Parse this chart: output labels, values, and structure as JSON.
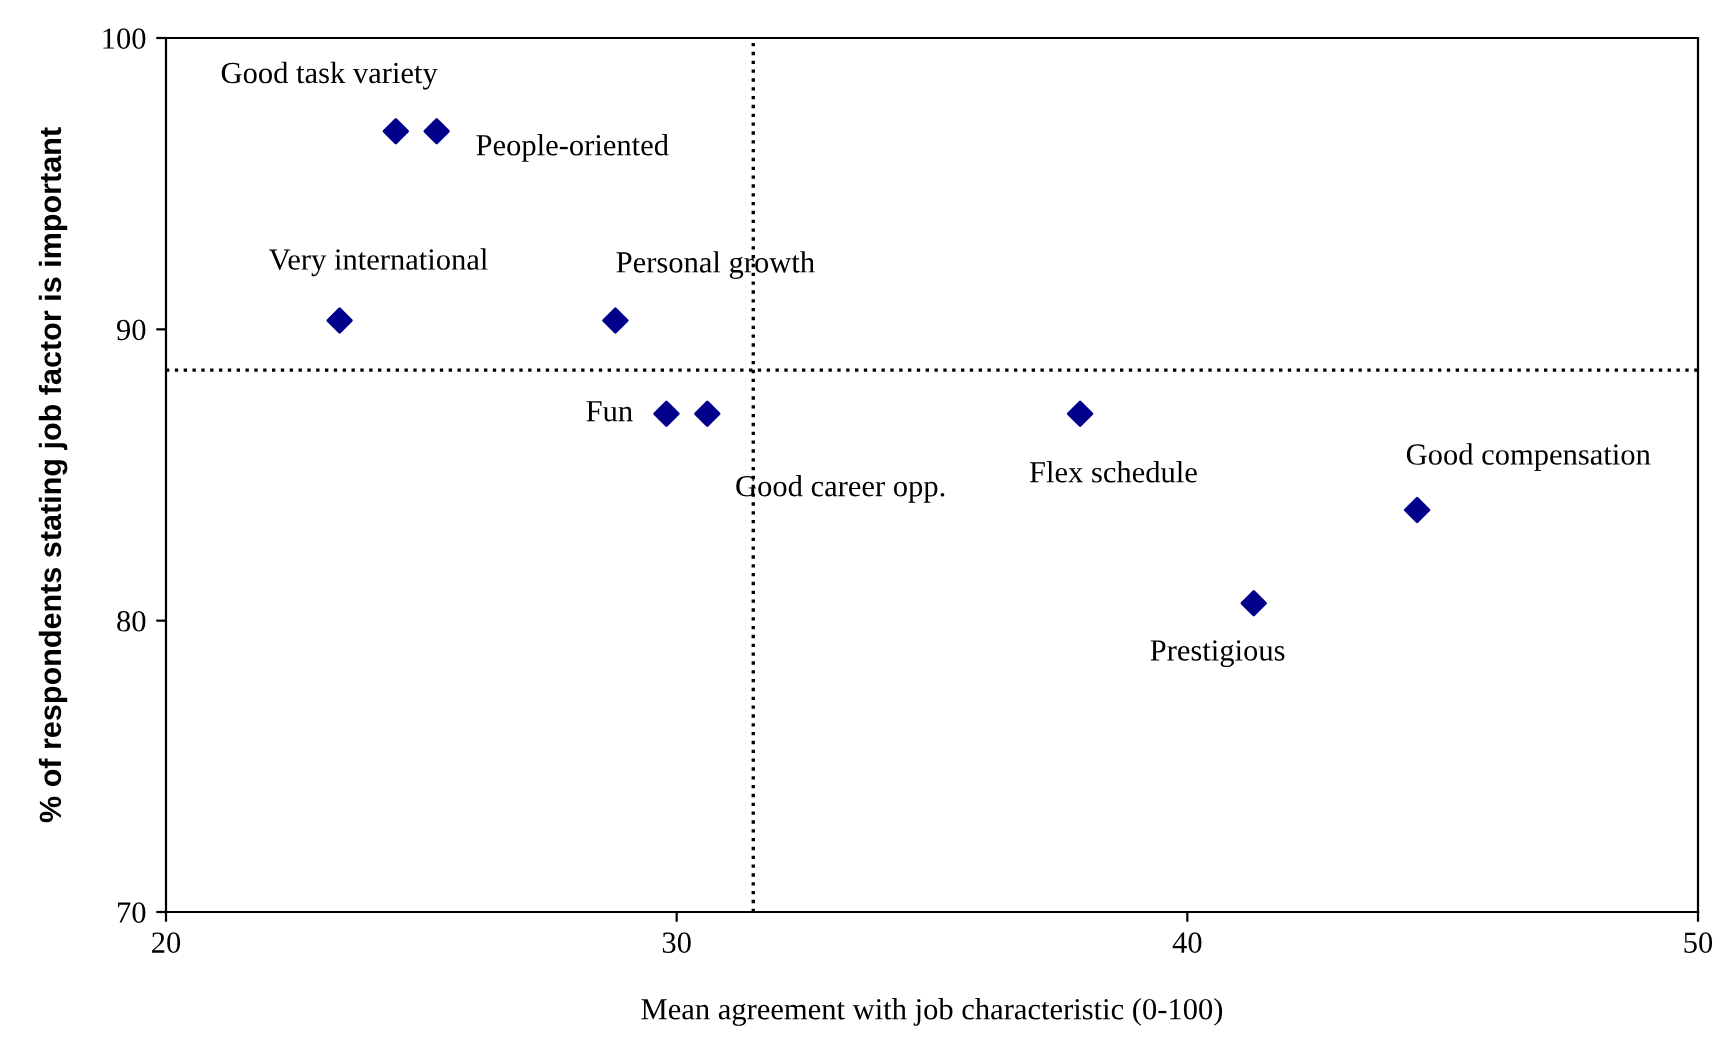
{
  "chart_data": {
    "type": "scatter",
    "xlabel": "Mean agreement with job characteristic (0-100)",
    "ylabel": "% of respondents stating job factor is important",
    "x": [
      24.5,
      25.3,
      23.4,
      28.8,
      29.8,
      30.6,
      37.9,
      44.5,
      41.3
    ],
    "series": [
      {
        "color": "#00008b",
        "values": [
          96.8,
          96.8,
          90.3,
          90.3,
          87.1,
          87.1,
          87.1,
          83.8,
          80.6
        ]
      }
    ],
    "marker": "diamond",
    "xlim": [
      20,
      50
    ],
    "xticks": [
      20,
      30,
      40,
      50
    ],
    "ylim": [
      70,
      100
    ],
    "yticks": [
      70,
      80,
      90,
      100
    ],
    "grid": false,
    "legend": false,
    "ref_lines": [
      {
        "axis": "x",
        "value": 31.5,
        "line_style": "dotted",
        "color": "#000000"
      },
      {
        "axis": "y",
        "value": 88.6,
        "line_style": "dotted",
        "color": "#000000"
      }
    ],
    "annotations": [
      {
        "text": "Good task variety",
        "x": 24.5,
        "y": 96.8
      },
      {
        "text": "People-oriented",
        "x": 25.3,
        "y": 96.8
      },
      {
        "text": "Very international",
        "x": 23.4,
        "y": 90.3
      },
      {
        "text": "Personal growth",
        "x": 28.8,
        "y": 90.3
      },
      {
        "text": "Fun",
        "x": 29.8,
        "y": 87.1
      },
      {
        "text": "Good career opp.",
        "x": 30.6,
        "y": 87.1
      },
      {
        "text": "Flex schedule",
        "x": 37.9,
        "y": 87.1
      },
      {
        "text": "Good compensation",
        "x": 44.5,
        "y": 83.8
      },
      {
        "text": "Prestigious",
        "x": 41.3,
        "y": 80.6
      }
    ]
  }
}
